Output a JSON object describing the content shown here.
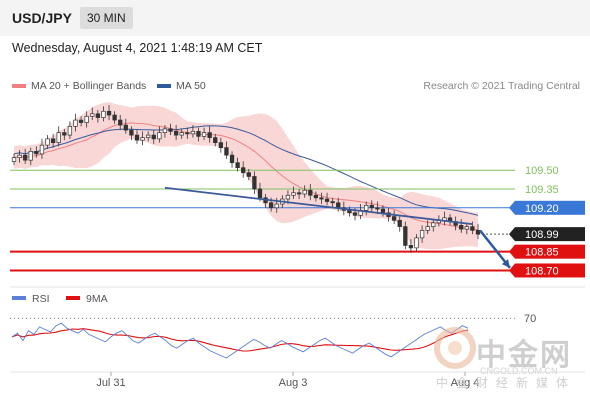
{
  "header": {
    "symbol": "USD/JPY",
    "timeframe": "30 MIN",
    "date": "Wednesday, August 4, 2021 1:48:19 AM CET"
  },
  "legend": {
    "items": [
      {
        "label": "MA 20 + Bollinger Bands",
        "color": "#f08080"
      },
      {
        "label": "MA 50",
        "color": "#2d5a9a"
      }
    ],
    "credit": "Research © 2021 Trading Central"
  },
  "watermark": {
    "name": "中金网",
    "url": "CNGOLD.COM.CN",
    "tag": "中金财经新媒体"
  },
  "chart_data": [
    {
      "type": "candlestick",
      "ylim": [
        108.6,
        110.1
      ],
      "x_ticks": [
        "Jul 31",
        "Aug 3",
        "Aug 4"
      ],
      "price_levels": [
        {
          "value": 109.5,
          "label": "109.50",
          "color": "#80c060",
          "style": "support-resistance"
        },
        {
          "value": 109.35,
          "label": "109.35",
          "color": "#80c060",
          "style": "support-resistance"
        },
        {
          "value": 109.2,
          "label": "109.20",
          "color": "#3a78d8",
          "style": "pivot"
        },
        {
          "value": 108.99,
          "label": "108.99",
          "color": "#222222",
          "style": "last-price"
        },
        {
          "value": 108.85,
          "label": "108.85",
          "color": "#e01010",
          "style": "target"
        },
        {
          "value": 108.7,
          "label": "108.70",
          "color": "#e01010",
          "style": "target"
        }
      ],
      "series": [
        {
          "name": "MA 20 + Bollinger Bands",
          "color": "#f08080"
        },
        {
          "name": "MA 50",
          "color": "#3a5a9a"
        }
      ],
      "closes": [
        109.6,
        109.62,
        109.58,
        109.65,
        109.63,
        109.7,
        109.75,
        109.72,
        109.8,
        109.78,
        109.85,
        109.9,
        109.88,
        109.93,
        109.95,
        109.92,
        109.97,
        109.94,
        109.9,
        109.86,
        109.82,
        109.78,
        109.74,
        109.76,
        109.78,
        109.75,
        109.8,
        109.83,
        109.81,
        109.78,
        109.8,
        109.79,
        109.81,
        109.77,
        109.8,
        109.76,
        109.72,
        109.68,
        109.62,
        109.56,
        109.52,
        109.48,
        109.45,
        109.35,
        109.28,
        109.24,
        109.2,
        109.23,
        109.27,
        109.3,
        109.32,
        109.31,
        109.34,
        109.3,
        109.28,
        109.27,
        109.25,
        109.24,
        109.2,
        109.18,
        109.16,
        109.14,
        109.18,
        109.22,
        109.2,
        109.19,
        109.16,
        109.13,
        109.1,
        109.05,
        108.9,
        108.88,
        108.96,
        109.02,
        109.05,
        109.08,
        109.1,
        109.12,
        109.09,
        109.06,
        109.03,
        109.05,
        109.02,
        108.99
      ],
      "trendline": {
        "from": 109.36,
        "to": 109.07,
        "color": "#3a5a9a"
      },
      "forecast_arrow": {
        "from": 109.02,
        "to": 108.72,
        "color": "#2d5a9a"
      }
    },
    {
      "type": "line",
      "indicator": "RSI",
      "ylim": [
        30,
        75
      ],
      "y_ticks": [
        70
      ],
      "series": [
        {
          "name": "RSI",
          "color": "#5b7fd6"
        },
        {
          "name": "9MA",
          "color": "#e01010"
        }
      ],
      "rsi": [
        55,
        58,
        52,
        60,
        57,
        63,
        61,
        59,
        64,
        66,
        62,
        60,
        58,
        61,
        57,
        55,
        53,
        51,
        55,
        58,
        60,
        56,
        52,
        50,
        53,
        56,
        58,
        55,
        52,
        48,
        46,
        49,
        52,
        54,
        50,
        47,
        44,
        42,
        40,
        38,
        41,
        44,
        47,
        50,
        53,
        51,
        48,
        46,
        49,
        52,
        50,
        47,
        45,
        43,
        46,
        49,
        52,
        54,
        51,
        48,
        46,
        44,
        42,
        45,
        48,
        50,
        47,
        44,
        41,
        39,
        42,
        45,
        48,
        51,
        54,
        57,
        59,
        61,
        63,
        60,
        58,
        61,
        64,
        62
      ]
    }
  ]
}
